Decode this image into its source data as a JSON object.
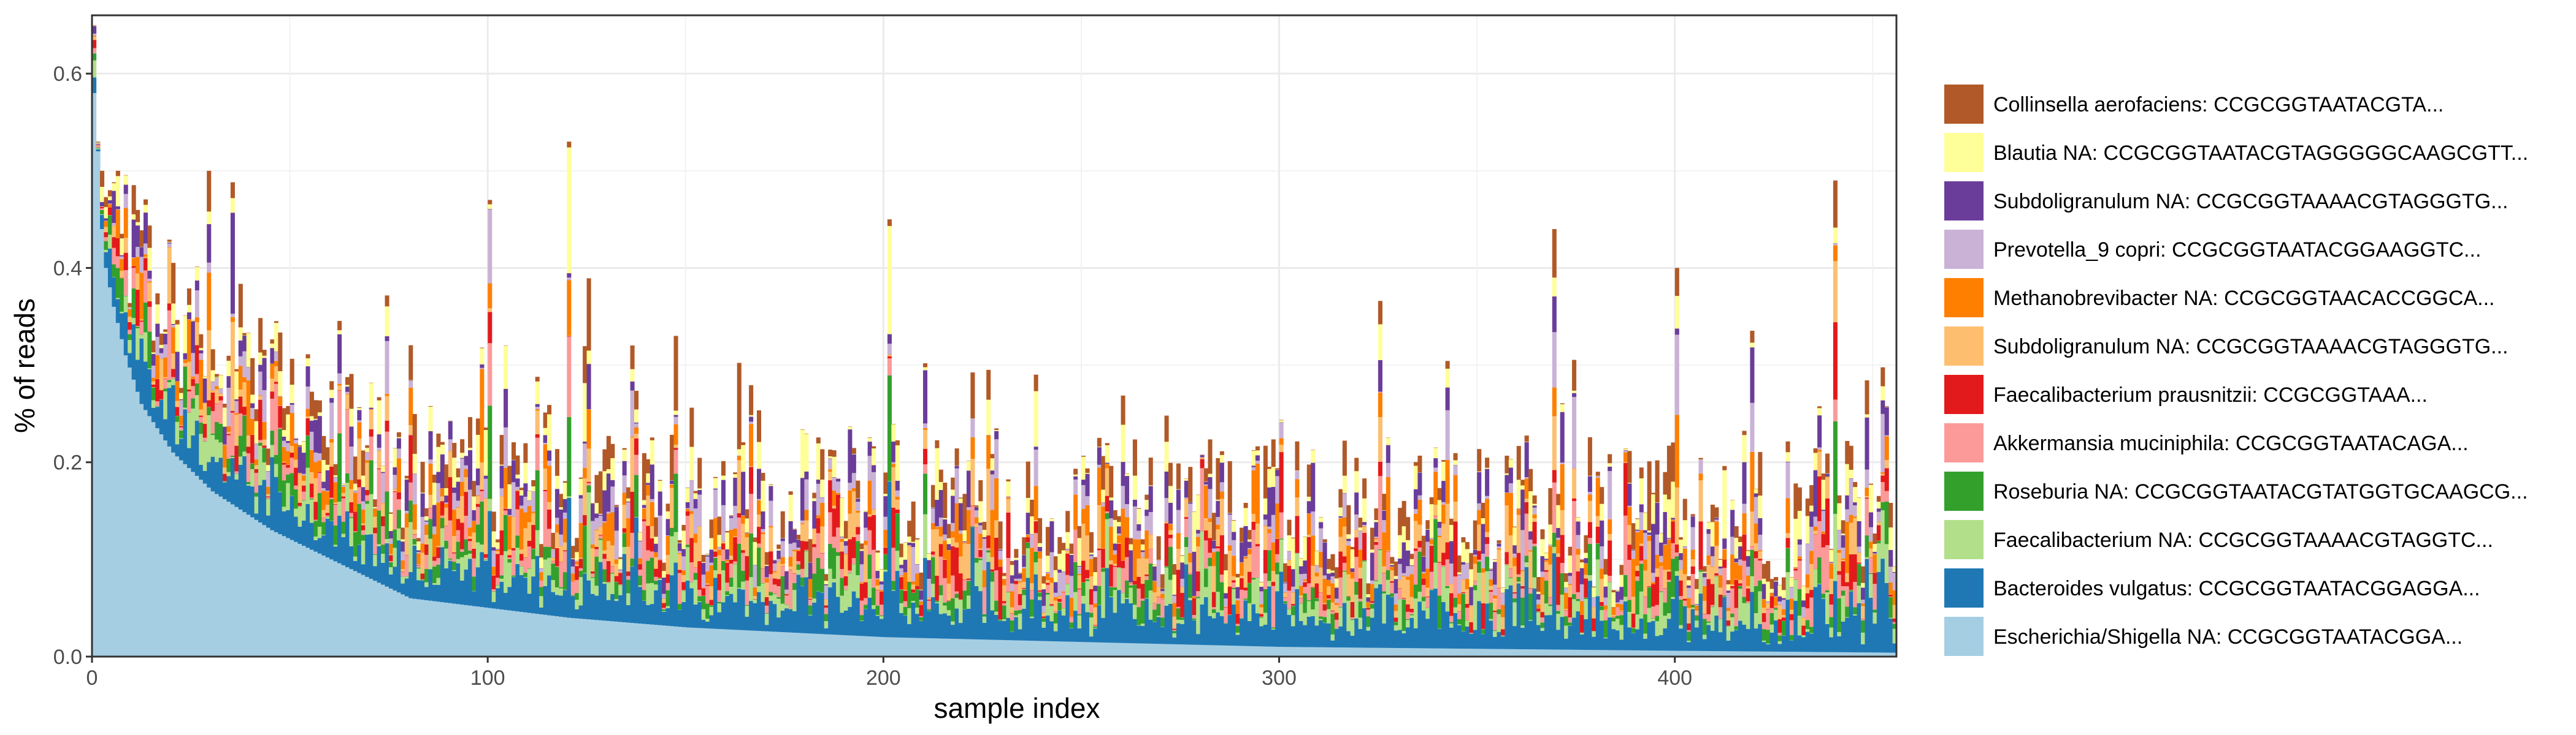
{
  "chart_data": {
    "type": "bar",
    "stacked": true,
    "xlabel": "sample index",
    "ylabel": "% of reads",
    "xlim": [
      0,
      456
    ],
    "ylim": [
      0,
      0.66
    ],
    "x_ticks": [
      0,
      100,
      200,
      300,
      400
    ],
    "y_ticks": [
      0.0,
      0.2,
      0.4,
      0.6
    ],
    "y_tick_labels": [
      "0.0",
      "0.2",
      "0.4",
      "0.6"
    ],
    "grid": true,
    "legend_position": "right",
    "n_samples": 456,
    "legend": [
      {
        "name": "Collinsella aerofaciens: CCGCGGTAATACGTA...",
        "color": "#b15928"
      },
      {
        "name": "Blautia NA: CCGCGGTAATACGTAGGGGGCAAGCGTT...",
        "color": "#ffff99"
      },
      {
        "name": "Subdoligranulum NA: CCGCGGTAAAACGTAGGGTG...",
        "color": "#6a3d9a"
      },
      {
        "name": "Prevotella_9 copri: CCGCGGTAATACGGAAGGTC...",
        "color": "#cab2d6"
      },
      {
        "name": "Methanobrevibacter NA: CCGCGGTAACACCGGCA...",
        "color": "#ff7f00"
      },
      {
        "name": "Subdoligranulum NA: CCGCGGTAAAACGTAGGGTG...",
        "color": "#fdbf6f"
      },
      {
        "name": "Faecalibacterium prausnitzii: CCGCGGTAAA...",
        "color": "#e31a1c"
      },
      {
        "name": "Akkermansia muciniphila: CCGCGGTAATACAGA...",
        "color": "#fb9a99"
      },
      {
        "name": "Roseburia NA: CCGCGGTAATACGTATGGTGCAAGCG...",
        "color": "#33a02c"
      },
      {
        "name": "Faecalibacterium NA: CCGCGGTAAAACGTAGGTC...",
        "color": "#b2df8a"
      },
      {
        "name": "Bacteroides vulgatus: CCGCGGTAATACGGAGGA...",
        "color": "#1f78b4"
      },
      {
        "name": "Escherichia/Shigella NA: CCGCGGTAATACGGA...",
        "color": "#a6cee3"
      }
    ],
    "stack_order_bottom_to_top": [
      "Escherichia/Shigella NA: CCGCGGTAATACGGA...",
      "Bacteroides vulgatus: CCGCGGTAATACGGAGGA...",
      "Faecalibacterium NA: CCGCGGTAAAACGTAGGTC...",
      "Roseburia NA: CCGCGGTAATACGTATGGTGCAAGCG...",
      "Akkermansia muciniphila: CCGCGGTAATACAGA...",
      "Faecalibacterium prausnitzii: CCGCGGTAAA...",
      "Subdoligranulum NA: CCGCGGTAAAACGTAGGGTG...",
      "Methanobrevibacter NA: CCGCGGTAACACCGGCA...",
      "Prevotella_9 copri: CCGCGGTAATACGGAAGGTC...",
      "Subdoligranulum NA: CCGCGGTAAAACGTAGGGTG...",
      "Blautia NA: CCGCGGTAATACGTAGGGGGCAAGCGTT...",
      "Collinsella aerofaciens: CCGCGGTAATACGTA..."
    ],
    "escherichia_profile": {
      "x": [
        0,
        1,
        2,
        3,
        5,
        8,
        12,
        20,
        30,
        45,
        60,
        70,
        80,
        100,
        120,
        150,
        200,
        250,
        300,
        350,
        400,
        456
      ],
      "y": [
        0.58,
        0.52,
        0.44,
        0.4,
        0.36,
        0.31,
        0.26,
        0.21,
        0.17,
        0.13,
        0.1,
        0.08,
        0.06,
        0.05,
        0.04,
        0.03,
        0.02,
        0.015,
        0.01,
        0.008,
        0.006,
        0.004
      ]
    },
    "notable_peaks": [
      {
        "x": 0,
        "total": 0.65
      },
      {
        "x": 4,
        "total": 0.48
      },
      {
        "x": 100,
        "total": 0.47
      },
      {
        "x": 120,
        "total": 0.53
      },
      {
        "x": 201,
        "total": 0.45
      },
      {
        "x": 369,
        "total": 0.44
      },
      {
        "x": 400,
        "total": 0.4
      },
      {
        "x": 440,
        "total": 0.49
      }
    ]
  }
}
